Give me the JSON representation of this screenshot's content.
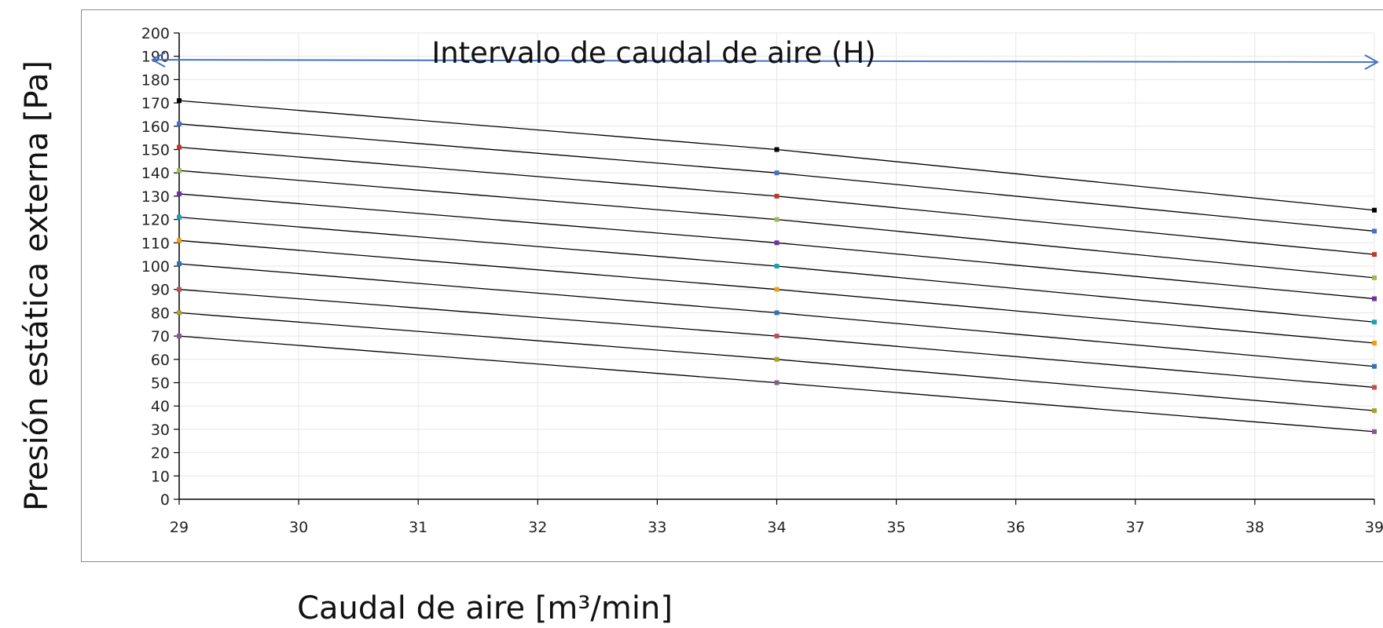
{
  "chart_data": {
    "type": "line",
    "title": "",
    "xlabel": "Caudal de aire [m³/min]",
    "ylabel": "Presión estática externa [Pa]",
    "xlim": [
      29,
      39
    ],
    "ylim": [
      0,
      200
    ],
    "x_ticks": [
      29,
      30,
      31,
      32,
      33,
      34,
      35,
      36,
      37,
      38,
      39
    ],
    "y_ticks": [
      0,
      10,
      20,
      30,
      40,
      50,
      60,
      70,
      80,
      90,
      100,
      110,
      120,
      130,
      140,
      150,
      160,
      170,
      180,
      190,
      200
    ],
    "grid": true,
    "legend": "none",
    "x": [
      29,
      34,
      39
    ],
    "series": [
      {
        "values": [
          171,
          150,
          124
        ],
        "color": "#000000"
      },
      {
        "values": [
          161,
          140,
          115
        ],
        "color": "#4472c4"
      },
      {
        "values": [
          151,
          130,
          105
        ],
        "color": "#c0392b"
      },
      {
        "values": [
          141,
          120,
          95
        ],
        "color": "#9bbb59"
      },
      {
        "values": [
          131,
          110,
          86
        ],
        "color": "#7030a0"
      },
      {
        "values": [
          121,
          100,
          76
        ],
        "color": "#17a2b8"
      },
      {
        "values": [
          111,
          90,
          67
        ],
        "color": "#f39c12"
      },
      {
        "values": [
          101,
          80,
          57
        ],
        "color": "#2e75b6"
      },
      {
        "values": [
          90,
          70,
          48
        ],
        "color": "#c0504d"
      },
      {
        "values": [
          80,
          60,
          38
        ],
        "color": "#a5a52a"
      },
      {
        "values": [
          70,
          50,
          29
        ],
        "color": "#7f6084"
      }
    ],
    "annotations": [
      {
        "text": "Intervalo de caudal de aire (H)",
        "arrow_x": [
          29,
          39
        ],
        "arrow_y": [
          188.5,
          187.5
        ],
        "color": "#4472c4"
      }
    ]
  }
}
